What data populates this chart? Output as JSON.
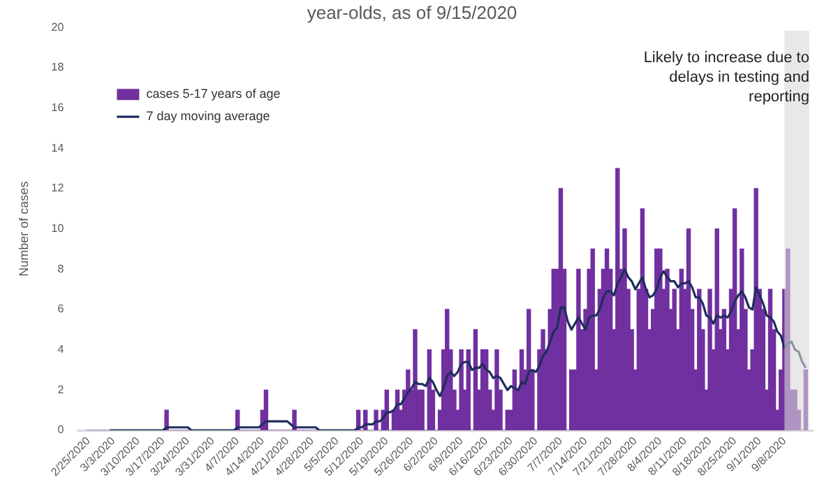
{
  "chart_data": {
    "type": "bar",
    "title": "year-olds, as of 9/15/2020",
    "ylabel": "Number of cases",
    "xlim": [
      "2020-02-22",
      "2020-09-16"
    ],
    "xticks": [
      {
        "value": "2020-02-25",
        "label": "2/25/2020"
      },
      {
        "value": "2020-03-03",
        "label": "3/3/2020"
      },
      {
        "value": "2020-03-10",
        "label": "3/10/2020"
      },
      {
        "value": "2020-03-17",
        "label": "3/17/2020"
      },
      {
        "value": "2020-03-24",
        "label": "3/24/2020"
      },
      {
        "value": "2020-03-31",
        "label": "3/31/2020"
      },
      {
        "value": "2020-04-07",
        "label": "4/7/2020"
      },
      {
        "value": "2020-04-14",
        "label": "4/14/2020"
      },
      {
        "value": "2020-04-21",
        "label": "4/21/2020"
      },
      {
        "value": "2020-04-28",
        "label": "4/28/2020"
      },
      {
        "value": "2020-05-05",
        "label": "5/5/2020"
      },
      {
        "value": "2020-05-12",
        "label": "5/12/2020"
      },
      {
        "value": "2020-05-19",
        "label": "5/19/2020"
      },
      {
        "value": "2020-05-26",
        "label": "5/26/2020"
      },
      {
        "value": "2020-06-02",
        "label": "6/2/2020"
      },
      {
        "value": "2020-06-09",
        "label": "6/9/2020"
      },
      {
        "value": "2020-06-16",
        "label": "6/16/2020"
      },
      {
        "value": "2020-06-23",
        "label": "6/23/2020"
      },
      {
        "value": "2020-06-30",
        "label": "6/30/2020"
      },
      {
        "value": "2020-07-07",
        "label": "7/7/2020"
      },
      {
        "value": "2020-07-14",
        "label": "7/14/2020"
      },
      {
        "value": "2020-07-21",
        "label": "7/21/2020"
      },
      {
        "value": "2020-07-28",
        "label": "7/28/2020"
      },
      {
        "value": "2020-08-04",
        "label": "8/4/2020"
      },
      {
        "value": "2020-08-11",
        "label": "8/11/2020"
      },
      {
        "value": "2020-08-18",
        "label": "8/18/2020"
      },
      {
        "value": "2020-08-25",
        "label": "8/25/2020"
      },
      {
        "value": "2020-09-01",
        "label": "9/1/2020"
      },
      {
        "value": "2020-09-08",
        "label": "9/8/2020"
      }
    ],
    "ylim": [
      0,
      20
    ],
    "yticks": [
      0,
      2,
      4,
      6,
      8,
      10,
      12,
      14,
      16,
      18,
      20
    ],
    "grid": false,
    "legend": "top left",
    "x": [
      "2020-02-25",
      "2020-02-26",
      "2020-02-27",
      "2020-02-28",
      "2020-02-29",
      "2020-03-01",
      "2020-03-02",
      "2020-03-03",
      "2020-03-04",
      "2020-03-05",
      "2020-03-06",
      "2020-03-07",
      "2020-03-08",
      "2020-03-09",
      "2020-03-10",
      "2020-03-11",
      "2020-03-12",
      "2020-03-13",
      "2020-03-14",
      "2020-03-15",
      "2020-03-16",
      "2020-03-17",
      "2020-03-18",
      "2020-03-19",
      "2020-03-20",
      "2020-03-21",
      "2020-03-22",
      "2020-03-23",
      "2020-03-24",
      "2020-03-25",
      "2020-03-26",
      "2020-03-27",
      "2020-03-28",
      "2020-03-29",
      "2020-03-30",
      "2020-03-31",
      "2020-04-01",
      "2020-04-02",
      "2020-04-03",
      "2020-04-04",
      "2020-04-05",
      "2020-04-06",
      "2020-04-07",
      "2020-04-08",
      "2020-04-09",
      "2020-04-10",
      "2020-04-11",
      "2020-04-12",
      "2020-04-13",
      "2020-04-14",
      "2020-04-15",
      "2020-04-16",
      "2020-04-17",
      "2020-04-18",
      "2020-04-19",
      "2020-04-20",
      "2020-04-21",
      "2020-04-22",
      "2020-04-23",
      "2020-04-24",
      "2020-04-25",
      "2020-04-26",
      "2020-04-27",
      "2020-04-28",
      "2020-04-29",
      "2020-04-30",
      "2020-05-01",
      "2020-05-02",
      "2020-05-03",
      "2020-05-04",
      "2020-05-05",
      "2020-05-06",
      "2020-05-07",
      "2020-05-08",
      "2020-05-09",
      "2020-05-10",
      "2020-05-11",
      "2020-05-12",
      "2020-05-13",
      "2020-05-14",
      "2020-05-15",
      "2020-05-16",
      "2020-05-17",
      "2020-05-18",
      "2020-05-19",
      "2020-05-20",
      "2020-05-21",
      "2020-05-22",
      "2020-05-23",
      "2020-05-24",
      "2020-05-25",
      "2020-05-26",
      "2020-05-27",
      "2020-05-28",
      "2020-05-29",
      "2020-05-30",
      "2020-05-31",
      "2020-06-01",
      "2020-06-02",
      "2020-06-03",
      "2020-06-04",
      "2020-06-05",
      "2020-06-06",
      "2020-06-07",
      "2020-06-08",
      "2020-06-09",
      "2020-06-10",
      "2020-06-11",
      "2020-06-12",
      "2020-06-13",
      "2020-06-14",
      "2020-06-15",
      "2020-06-16",
      "2020-06-17",
      "2020-06-18",
      "2020-06-19",
      "2020-06-20",
      "2020-06-21",
      "2020-06-22",
      "2020-06-23",
      "2020-06-24",
      "2020-06-25",
      "2020-06-26",
      "2020-06-27",
      "2020-06-28",
      "2020-06-29",
      "2020-06-30",
      "2020-07-01",
      "2020-07-02",
      "2020-07-03",
      "2020-07-04",
      "2020-07-05",
      "2020-07-06",
      "2020-07-07",
      "2020-07-08",
      "2020-07-09",
      "2020-07-10",
      "2020-07-11",
      "2020-07-12",
      "2020-07-13",
      "2020-07-14",
      "2020-07-15",
      "2020-07-16",
      "2020-07-17",
      "2020-07-18",
      "2020-07-19",
      "2020-07-20",
      "2020-07-21",
      "2020-07-22",
      "2020-07-23",
      "2020-07-24",
      "2020-07-25",
      "2020-07-26",
      "2020-07-27",
      "2020-07-28",
      "2020-07-29",
      "2020-07-30",
      "2020-07-31",
      "2020-08-01",
      "2020-08-02",
      "2020-08-03",
      "2020-08-04",
      "2020-08-05",
      "2020-08-06",
      "2020-08-07",
      "2020-08-08",
      "2020-08-09",
      "2020-08-10",
      "2020-08-11",
      "2020-08-12",
      "2020-08-13",
      "2020-08-14",
      "2020-08-15",
      "2020-08-16",
      "2020-08-17",
      "2020-08-18",
      "2020-08-19",
      "2020-08-20",
      "2020-08-21",
      "2020-08-22",
      "2020-08-23",
      "2020-08-24",
      "2020-08-25",
      "2020-08-26",
      "2020-08-27",
      "2020-08-28",
      "2020-08-29",
      "2020-08-30",
      "2020-08-31",
      "2020-09-01",
      "2020-09-02",
      "2020-09-03",
      "2020-09-04",
      "2020-09-05",
      "2020-09-06",
      "2020-09-07",
      "2020-09-08",
      "2020-09-09",
      "2020-09-10",
      "2020-09-11",
      "2020-09-12",
      "2020-09-13",
      "2020-09-14"
    ],
    "series": [
      {
        "name": "cases 5-17 years of age",
        "color": "#7030a0",
        "values": [
          0,
          0,
          0,
          0,
          0,
          0,
          0,
          0,
          0,
          0,
          0,
          0,
          0,
          0,
          0,
          0,
          0,
          0,
          0,
          0,
          0,
          0,
          1,
          0,
          0,
          0,
          0,
          0,
          0,
          0,
          0,
          0,
          0,
          0,
          0,
          0,
          0,
          0,
          0,
          0,
          0,
          0,
          1,
          0,
          0,
          0,
          0,
          0,
          0,
          1,
          2,
          0,
          0,
          0,
          0,
          0,
          0,
          0,
          1,
          0,
          0,
          0,
          0,
          0,
          0,
          0,
          0,
          0,
          0,
          0,
          0,
          0,
          0,
          0,
          0,
          0,
          1,
          0,
          1,
          0,
          0,
          1,
          0,
          1,
          2,
          0,
          1,
          2,
          1,
          2,
          3,
          2,
          5,
          2,
          2,
          0,
          4,
          2,
          0,
          1,
          4,
          6,
          4,
          2,
          1,
          4,
          2,
          4,
          0,
          5,
          2,
          4,
          4,
          2,
          1,
          4,
          2,
          0,
          1,
          1,
          3,
          2,
          4,
          3,
          6,
          3,
          0,
          4,
          5,
          4,
          6,
          8,
          8,
          12,
          8,
          0,
          3,
          3,
          8,
          5,
          6,
          8,
          9,
          3,
          7,
          8,
          9,
          8,
          5,
          13,
          8,
          10,
          7,
          5,
          3,
          7,
          11,
          7,
          5,
          6,
          9,
          9,
          7,
          8,
          6,
          7,
          5,
          8,
          7,
          10,
          6,
          3,
          7,
          5,
          2,
          7,
          4,
          10,
          5,
          6,
          4,
          7,
          11,
          5,
          9,
          6,
          3,
          4,
          12,
          7,
          6,
          2,
          7,
          5,
          1,
          3,
          7,
          9,
          2,
          2,
          1,
          0,
          3
        ]
      },
      {
        "name": "7 day moving average",
        "type": "line",
        "color": "#1f2d5c",
        "marker": "none",
        "values": [
          null,
          null,
          null,
          null,
          null,
          null,
          0,
          0,
          0,
          0,
          0,
          0,
          0,
          0,
          0,
          0,
          0,
          0,
          0,
          0,
          0,
          0,
          0.15,
          0.15,
          0.15,
          0.15,
          0.15,
          0.15,
          0.15,
          0,
          0,
          0,
          0,
          0,
          0,
          0,
          0,
          0,
          0,
          0,
          0,
          0,
          0.15,
          0.15,
          0.15,
          0.15,
          0.15,
          0.15,
          0.15,
          0.3,
          0.45,
          0.45,
          0.45,
          0.45,
          0.45,
          0.45,
          0.45,
          0.3,
          0.15,
          0.15,
          0.15,
          0.15,
          0.15,
          0.15,
          0.15,
          0,
          0,
          0,
          0,
          0,
          0,
          0,
          0,
          0,
          0,
          0,
          0.15,
          0.15,
          0.3,
          0.3,
          0.3,
          0.45,
          0.45,
          0.6,
          0.9,
          0.9,
          1,
          1.3,
          1.3,
          1.6,
          1.9,
          2.1,
          2.4,
          2.3,
          2.3,
          2.2,
          2.6,
          2.4,
          2,
          1.7,
          2.1,
          2.7,
          2.9,
          2.7,
          2.9,
          3.3,
          3.4,
          3.4,
          3,
          3.1,
          3.1,
          3.3,
          3,
          2.9,
          2.6,
          2.7,
          2.6,
          2.3,
          2,
          2.2,
          2.1,
          2,
          2.4,
          2.3,
          2.9,
          3,
          2.9,
          3.2,
          3.7,
          3.9,
          4.4,
          4.9,
          5.1,
          6.1,
          6.1,
          5.4,
          5,
          5.3,
          5.6,
          5.3,
          5,
          5.6,
          5.7,
          5.7,
          6,
          6.6,
          6.9,
          6.9,
          6.7,
          7.3,
          7.6,
          8,
          7.6,
          7.4,
          7,
          7.3,
          7.6,
          7,
          6.6,
          6.7,
          7,
          7.6,
          7.9,
          7.6,
          7.4,
          7.4,
          7.1,
          7.3,
          7.3,
          7.4,
          7.1,
          6.6,
          6.6,
          6.3,
          5.7,
          5.6,
          5.3,
          5.7,
          5.6,
          5.7,
          5.6,
          5.9,
          6.4,
          6.7,
          6.9,
          6.6,
          6.1,
          6,
          7.1,
          6.7,
          6.3,
          5.7,
          5.6,
          5.4,
          4.9,
          4.7,
          4.1,
          4.3,
          4.4,
          4,
          3.9,
          3.4,
          3.1
        ]
      }
    ],
    "bands": [
      {
        "axis": "x",
        "from": "2020-09-08",
        "to": "2020-09-15",
        "label": "Likely to increase due to delays in testing and reporting",
        "color": "#d9d9d9"
      }
    ]
  }
}
